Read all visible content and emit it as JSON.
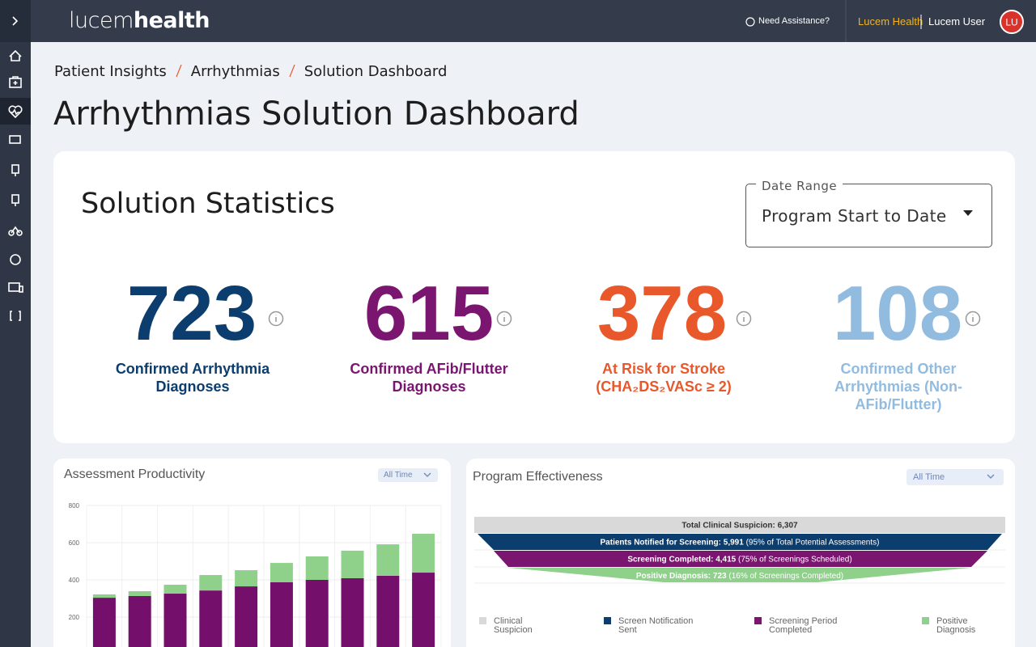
{
  "header": {
    "logo": {
      "light": "lucem",
      "bold": "health"
    },
    "help": "Need Assistance?",
    "organization": "Lucem Health",
    "user": "Lucem User",
    "avatar": "LU"
  },
  "breadcrumb": [
    "Patient Insights",
    "Arrhythmias",
    "Solution Dashboard"
  ],
  "page_title": "Arrhythmias Solution Dashboard",
  "statistics": {
    "title": "Solution Statistics",
    "date_range": {
      "label": "Date Range",
      "value": "Program Start to Date"
    },
    "items": [
      {
        "value": 723,
        "label": "Confirmed Arrhythmia Diagnoses",
        "color": "#0b3d6e"
      },
      {
        "value": 615,
        "label": "Confirmed AFib/Flutter Diagnoses",
        "color": "#7a1570"
      },
      {
        "value": 378,
        "label": "At Risk for Stroke (CHA₂DS₂VASc ≥ 2)",
        "color": "#e8582b"
      },
      {
        "value": 108,
        "label": "Confirmed Other Arrhythmias (Non-AFib/Flutter)",
        "color": "#92bbe0"
      }
    ]
  },
  "chart_data": {
    "type": "bar",
    "stacked": true,
    "title": "Assessment Productivity",
    "filter": "All Time",
    "ylim": [
      0,
      800
    ],
    "yticks": [
      200,
      400,
      600,
      800
    ],
    "grid": true,
    "series": [
      {
        "color": "#74106b",
        "values": [
          304,
          313,
          326,
          343,
          365,
          387,
          400,
          409,
          422,
          439
        ]
      },
      {
        "color": "#8fd18b",
        "values": [
          18,
          26,
          48,
          83,
          87,
          104,
          126,
          148,
          169,
          209
        ]
      }
    ]
  },
  "program_effectiveness": {
    "title": "Program Effectiveness",
    "filter": "All Time",
    "rows": [
      {
        "label": "Total Clinical Suspicion: 6,307",
        "color": "#d9d9d9"
      },
      {
        "label": "Patients Notified for Screening: 5,991",
        "note": "(95% of Total Potential Assessments)",
        "color": "#0b3d6e"
      },
      {
        "label": "Screening Completed: 4,415",
        "note": "(75% of Screenings Scheduled)",
        "color": "#7a1570"
      },
      {
        "label": "Positive Diagnosis: 723",
        "note": "(16% of Screenings Completed)",
        "color": "#8fd18b"
      }
    ],
    "legend": [
      "Clinical Suspicion",
      "Screen Notification Sent",
      "Screening Period Completed",
      "Positive Diagnosis"
    ]
  }
}
